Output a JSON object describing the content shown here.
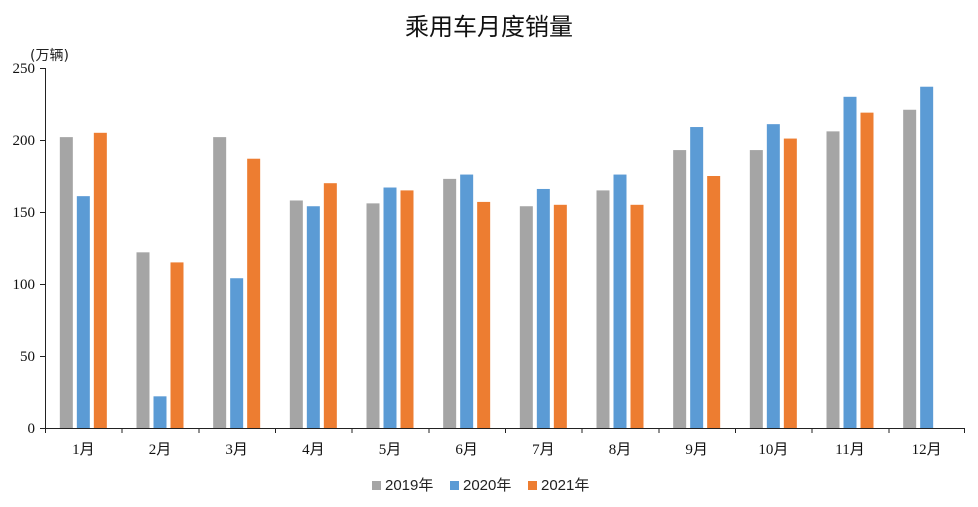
{
  "chart_data": {
    "type": "bar",
    "title": "乘用车月度销量",
    "ylabel": "(万辆)",
    "xlabel": "",
    "categories": [
      "1月",
      "2月",
      "3月",
      "4月",
      "5月",
      "6月",
      "7月",
      "8月",
      "9月",
      "10月",
      "11月",
      "12月"
    ],
    "ylim": [
      0,
      250
    ],
    "yticks": [
      0,
      50,
      100,
      150,
      200,
      250
    ],
    "grid": false,
    "legend_position": "bottom",
    "series": [
      {
        "name": "2019年",
        "color": "#A5A5A5",
        "values": [
          202,
          122,
          202,
          158,
          156,
          173,
          154,
          165,
          193,
          193,
          206,
          221
        ]
      },
      {
        "name": "2020年",
        "color": "#5B9BD5",
        "values": [
          161,
          22,
          104,
          154,
          167,
          176,
          166,
          176,
          209,
          211,
          230,
          237
        ]
      },
      {
        "name": "2021年",
        "color": "#ED7D31",
        "values": [
          205,
          115,
          187,
          170,
          165,
          157,
          155,
          155,
          175,
          201,
          219,
          null
        ]
      }
    ]
  }
}
